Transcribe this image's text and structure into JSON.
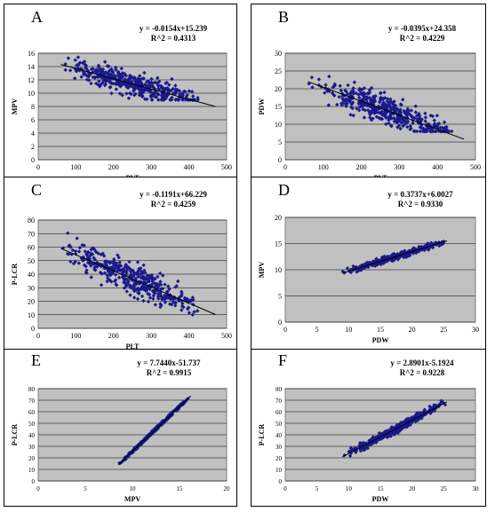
{
  "panels": [
    {
      "label": "A",
      "equation": "y = -0.0154x+15.239",
      "r2": "R^2 = 0.4313",
      "xlabel": "PLT",
      "ylabel": "MPV"
    },
    {
      "label": "B",
      "equation": "y = -0.0395x+24.358",
      "r2": "R^2 = 0.4229",
      "xlabel": "PLT",
      "ylabel": "PDW"
    },
    {
      "label": "C",
      "equation": "y = -0.1191x+66.229",
      "r2": "R^2 = 0.4259",
      "xlabel": "PLT",
      "ylabel": "P-LCR"
    },
    {
      "label": "D",
      "equation": "y = 0.3737x+6.0027",
      "r2": "R^2 = 0.9330",
      "xlabel": "PDW",
      "ylabel": "MPV"
    },
    {
      "label": "E",
      "equation": "y = 7.7440x-51.737",
      "r2": "R^2 = 0.9915",
      "xlabel": "MPV",
      "ylabel": "P-LCR"
    },
    {
      "label": "F",
      "equation": "y = 2.8901x-5.1924",
      "r2": "R^2 = 0.9228",
      "xlabel": "PDW",
      "ylabel": "P-LCR"
    }
  ],
  "chart_data": [
    {
      "type": "scatter",
      "title": "A",
      "xlabel": "PLT",
      "ylabel": "MPV",
      "xlim": [
        0,
        500
      ],
      "ylim": [
        0,
        16
      ],
      "xticks": [
        0,
        100,
        200,
        300,
        400,
        500
      ],
      "yticks": [
        0,
        2,
        4,
        6,
        8,
        10,
        12,
        14,
        16
      ],
      "fit": {
        "slope": -0.0154,
        "intercept": 15.239,
        "x_range": [
          60,
          470
        ]
      },
      "cloud": {
        "x_range": [
          60,
          440
        ],
        "y_spread": 1.6,
        "y_max": 16,
        "y_min": 9,
        "n": 420
      },
      "colors": {
        "points": "#1a1a8c",
        "fit": "#000000",
        "plot_bg": "#c0c0c0"
      }
    },
    {
      "type": "scatter",
      "title": "B",
      "xlabel": "PLT",
      "ylabel": "PDW",
      "xlim": [
        0,
        500
      ],
      "ylim": [
        0,
        30
      ],
      "xticks": [
        0,
        100,
        200,
        300,
        400,
        500
      ],
      "yticks": [
        0,
        5,
        10,
        15,
        20,
        25,
        30
      ],
      "fit": {
        "slope": -0.0395,
        "intercept": 24.358,
        "x_range": [
          60,
          470
        ]
      },
      "cloud": {
        "x_range": [
          60,
          460
        ],
        "y_spread": 3.5,
        "y_max": 26,
        "y_min": 8,
        "n": 420
      },
      "colors": {
        "points": "#1a1a8c",
        "fit": "#000000",
        "plot_bg": "#c0c0c0"
      }
    },
    {
      "type": "scatter",
      "title": "C",
      "xlabel": "PLT",
      "ylabel": "P-LCR",
      "xlim": [
        0,
        500
      ],
      "ylim": [
        0,
        80
      ],
      "xticks": [
        0,
        100,
        200,
        300,
        400,
        500
      ],
      "yticks": [
        0,
        10,
        20,
        30,
        40,
        50,
        60,
        70,
        80
      ],
      "fit": {
        "slope": -0.1191,
        "intercept": 66.229,
        "x_range": [
          60,
          470
        ]
      },
      "cloud": {
        "x_range": [
          60,
          450
        ],
        "y_spread": 10,
        "y_max": 72,
        "y_min": 10,
        "n": 420
      },
      "colors": {
        "points": "#1a1a8c",
        "fit": "#000000",
        "plot_bg": "#c0c0c0"
      }
    },
    {
      "type": "scatter",
      "title": "D",
      "xlabel": "PDW",
      "ylabel": "MPV",
      "xlim": [
        0,
        30
      ],
      "ylim": [
        0,
        20
      ],
      "xticks": [
        0,
        5,
        10,
        15,
        20,
        25,
        30
      ],
      "yticks": [
        0,
        5,
        10,
        15,
        20
      ],
      "fit": {
        "slope": 0.3737,
        "intercept": 6.0027,
        "x_range": [
          9,
          25.5
        ]
      },
      "cloud": {
        "x_range": [
          9,
          25.5
        ],
        "y_spread": 0.55,
        "y_max": 16,
        "y_min": 8.5,
        "n": 380
      },
      "colors": {
        "points": "#1a1a8c",
        "fit": "#000000",
        "plot_bg": "#c0c0c0"
      }
    },
    {
      "type": "scatter",
      "title": "E",
      "xlabel": "MPV",
      "ylabel": "P-LCR",
      "xlim": [
        0,
        20
      ],
      "ylim": [
        0,
        80
      ],
      "xticks": [
        0,
        5,
        10,
        15,
        20
      ],
      "yticks": [
        0,
        10,
        20,
        30,
        40,
        50,
        60,
        70,
        80
      ],
      "fit": {
        "slope": 7.744,
        "intercept": -51.737,
        "x_range": [
          8.5,
          16.2
        ]
      },
      "cloud": {
        "x_range": [
          8.5,
          16.2
        ],
        "y_spread": 1.2,
        "y_max": 73,
        "y_min": 12,
        "n": 340
      },
      "colors": {
        "points": "#1a1a8c",
        "fit": "#000000",
        "plot_bg": "#c0c0c0"
      }
    },
    {
      "type": "scatter",
      "title": "F",
      "xlabel": "PDW",
      "ylabel": "P-LCR",
      "xlim": [
        0,
        30
      ],
      "ylim": [
        0,
        80
      ],
      "xticks": [
        0,
        5,
        10,
        15,
        20,
        25,
        30
      ],
      "yticks": [
        0,
        10,
        20,
        30,
        40,
        50,
        60,
        70,
        80
      ],
      "fit": {
        "slope": 2.8901,
        "intercept": -5.1924,
        "x_range": [
          9,
          25.5
        ]
      },
      "cloud": {
        "x_range": [
          9,
          25.5
        ],
        "y_spread": 3.2,
        "y_max": 72,
        "y_min": 12,
        "n": 420
      },
      "colors": {
        "points": "#1a1a8c",
        "fit": "#000000",
        "plot_bg": "#c0c0c0"
      }
    }
  ]
}
